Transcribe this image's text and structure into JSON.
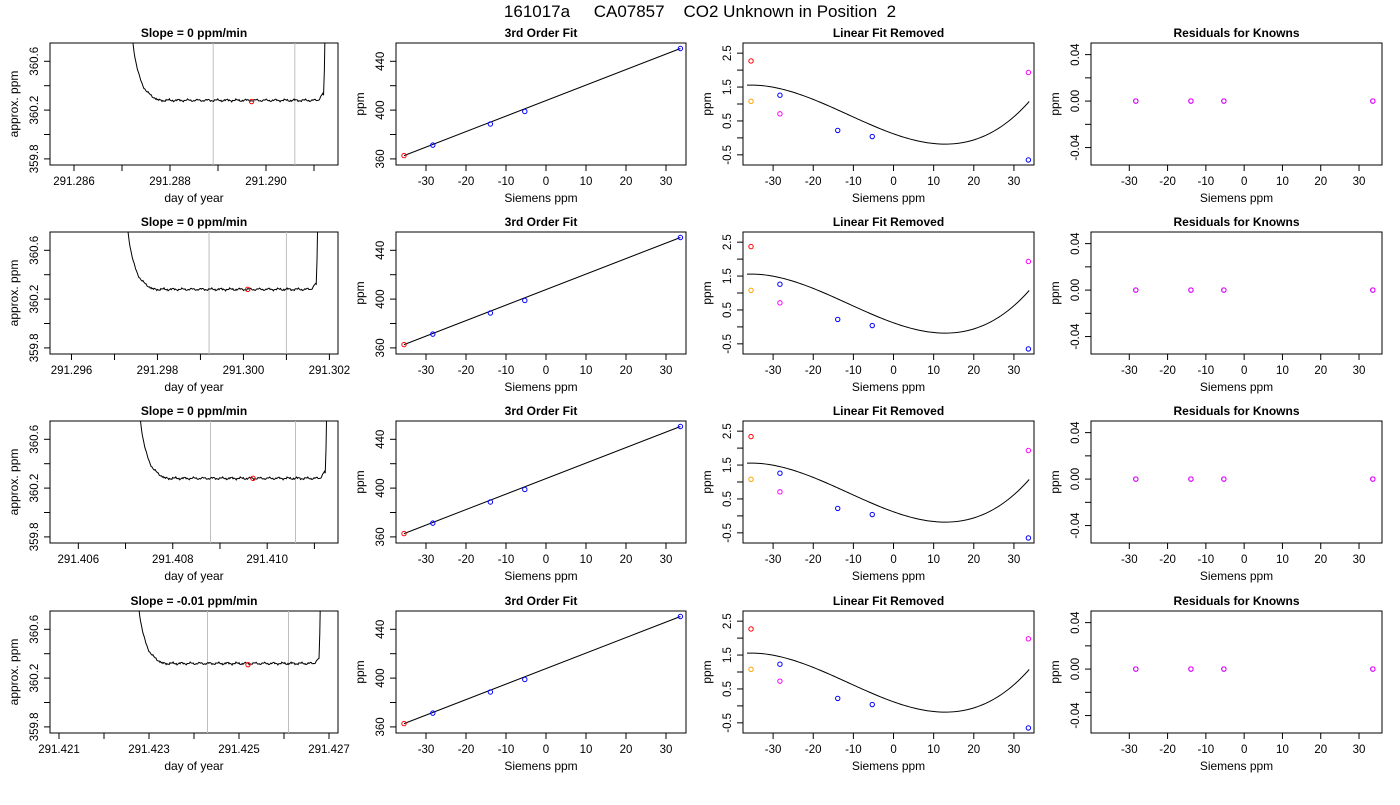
{
  "title": "161017a     CA07857    CO2 Unknown in Position  2",
  "colors": {
    "known": "#0000ff",
    "unknown": "#ff0000",
    "orange": "#ffa500",
    "magenta": "#ff00ff",
    "vline": "#bebebe"
  },
  "chart_data": [
    {
      "type": "line",
      "title": "Slope =  0  ppm/min",
      "xlabel": "day of year",
      "ylabel": "approx. ppm",
      "xlim": [
        291.2855,
        291.2915
      ],
      "ylim": [
        359.75,
        360.75
      ],
      "xticks": [
        291.286,
        291.287,
        291.288,
        291.289,
        291.29,
        291.291
      ],
      "xtick_labels": [
        "291.286",
        "",
        "291.288",
        "",
        "291.290",
        ""
      ],
      "yticks": [
        359.8,
        360.0,
        360.2,
        360.4,
        360.6
      ],
      "ytick_labels": [
        "359.8",
        "",
        "360.2",
        "",
        "360.6"
      ],
      "series_x0": 291.28715,
      "series_x1": 291.29125,
      "level": 360.28,
      "rise_end": 360.34,
      "vlines": [
        291.2889,
        291.2906
      ],
      "marker": {
        "x": 291.2897,
        "y": 360.27
      }
    },
    {
      "type": "scatter",
      "title": "3rd Order Fit",
      "xlabel": "Siemens ppm",
      "ylabel": "ppm",
      "xlim": [
        -37.5,
        35
      ],
      "ylim": [
        355,
        455
      ],
      "xticks": [
        -30,
        -20,
        -10,
        0,
        10,
        20,
        30
      ],
      "xtick_labels": [
        "-30",
        "-20",
        "-10",
        "0",
        "10",
        "20",
        "30"
      ],
      "yticks": [
        360,
        380,
        400,
        420,
        440
      ],
      "ytick_labels": [
        "360",
        "",
        "400",
        "",
        "440"
      ],
      "known": {
        "x": [
          -28.3,
          -13.9,
          -5.3,
          33.6
        ],
        "y": [
          371.3,
          388.6,
          398.9,
          450.5
        ]
      },
      "unknown": {
        "x": [
          -35.5
        ],
        "y": [
          362.7
        ]
      },
      "fit": {
        "x0": -35.5,
        "x1": 33.6
      }
    },
    {
      "type": "scatter",
      "title": "Linear Fit Removed",
      "xlabel": "Siemens ppm",
      "ylabel": "ppm",
      "xlim": [
        -37.5,
        35
      ],
      "ylim": [
        -0.8,
        2.8
      ],
      "xticks": [
        -30,
        -20,
        -10,
        0,
        10,
        20,
        30
      ],
      "xtick_labels": [
        "-30",
        "-20",
        "-10",
        "0",
        "10",
        "20",
        "30"
      ],
      "yticks": [
        -0.5,
        0,
        0.5,
        1,
        1.5,
        2,
        2.5
      ],
      "ytick_labels": [
        "-0.5",
        "",
        "0.5",
        "",
        "1.5",
        "",
        "2.5"
      ],
      "known": {
        "x": [
          -28.3,
          -13.9,
          -5.3,
          33.6
        ],
        "y": [
          1.26,
          0.22,
          0.04,
          -0.65
        ]
      },
      "unknown": {
        "x": [
          -35.5
        ],
        "y": [
          2.27
        ]
      },
      "orange": {
        "x": [
          -35.5
        ],
        "y": [
          1.08
        ]
      },
      "magenta": {
        "x": [
          -28.3,
          33.6
        ],
        "y": [
          0.71,
          1.93
        ]
      },
      "curve": {
        "x0": -36.5,
        "x1": 33.8,
        "c": [
          0.1203,
          -0.04215,
          0.001044,
          3.07e-05
        ]
      }
    },
    {
      "type": "scatter",
      "title": "Residuals for Knowns",
      "xlabel": "Siemens ppm",
      "ylabel": "ppm",
      "xlim": [
        -40,
        36
      ],
      "ylim": [
        -0.055,
        0.05
      ],
      "xticks": [
        -30,
        -20,
        -10,
        0,
        10,
        20,
        30
      ],
      "xtick_labels": [
        "-30",
        "-20",
        "-10",
        "0",
        "10",
        "20",
        "30"
      ],
      "yticks": [
        -0.04,
        -0.02,
        0,
        0.02,
        0.04
      ],
      "ytick_labels": [
        "-0.04",
        "",
        "0.00",
        "",
        "0.04"
      ],
      "known": {
        "x": [
          -28.3,
          -13.9,
          -5.3,
          33.6
        ],
        "y": [
          0,
          0,
          0,
          0
        ]
      }
    },
    {
      "type": "line",
      "title": "Slope =  0  ppm/min",
      "xlabel": "day of year",
      "ylabel": "approx. ppm",
      "xlim": [
        291.2955,
        291.3022
      ],
      "ylim": [
        359.75,
        360.75
      ],
      "xticks": [
        291.296,
        291.297,
        291.298,
        291.299,
        291.3,
        291.301,
        291.302
      ],
      "xtick_labels": [
        "291.296",
        "",
        "291.298",
        "",
        "291.300",
        "",
        "291.302"
      ],
      "yticks": [
        359.8,
        360.0,
        360.2,
        360.4,
        360.6
      ],
      "ytick_labels": [
        "359.8",
        "",
        "360.2",
        "",
        "360.6"
      ],
      "series_x0": 291.29723,
      "series_x1": 291.30175,
      "level": 360.28,
      "rise_end": 360.33,
      "vlines": [
        291.2992,
        291.301
      ],
      "marker": {
        "x": 291.3001,
        "y": 360.28
      }
    },
    {
      "type": "scatter",
      "title": "3rd Order Fit",
      "xlabel": "Siemens ppm",
      "ylabel": "ppm",
      "xlim": [
        -37.5,
        35
      ],
      "ylim": [
        355,
        455
      ],
      "xticks": [
        -30,
        -20,
        -10,
        0,
        10,
        20,
        30
      ],
      "xtick_labels": [
        "-30",
        "-20",
        "-10",
        "0",
        "10",
        "20",
        "30"
      ],
      "yticks": [
        360,
        380,
        400,
        420,
        440
      ],
      "ytick_labels": [
        "360",
        "",
        "400",
        "",
        "440"
      ],
      "known": {
        "x": [
          -28.3,
          -13.9,
          -5.3,
          33.6
        ],
        "y": [
          371.3,
          388.6,
          398.9,
          450.5
        ]
      },
      "unknown": {
        "x": [
          -35.5
        ],
        "y": [
          362.7
        ]
      },
      "fit": {
        "x0": -35.5,
        "x1": 33.6
      }
    },
    {
      "type": "scatter",
      "title": "Linear Fit Removed",
      "xlabel": "Siemens ppm",
      "ylabel": "ppm",
      "xlim": [
        -37.5,
        35
      ],
      "ylim": [
        -0.8,
        2.8
      ],
      "xticks": [
        -30,
        -20,
        -10,
        0,
        10,
        20,
        30
      ],
      "xtick_labels": [
        "-30",
        "-20",
        "-10",
        "0",
        "10",
        "20",
        "30"
      ],
      "yticks": [
        -0.5,
        0,
        0.5,
        1,
        1.5,
        2,
        2.5
      ],
      "ytick_labels": [
        "-0.5",
        "",
        "0.5",
        "",
        "1.5",
        "",
        "2.5"
      ],
      "known": {
        "x": [
          -28.3,
          -13.9,
          -5.3,
          33.6
        ],
        "y": [
          1.26,
          0.22,
          0.04,
          -0.65
        ]
      },
      "unknown": {
        "x": [
          -35.5
        ],
        "y": [
          2.37
        ]
      },
      "orange": {
        "x": [
          -35.5
        ],
        "y": [
          1.08
        ]
      },
      "magenta": {
        "x": [
          -28.3,
          33.6
        ],
        "y": [
          0.71,
          1.93
        ]
      },
      "curve": {
        "x0": -36.5,
        "x1": 33.8,
        "c": [
          0.1203,
          -0.04215,
          0.001044,
          3.07e-05
        ]
      }
    },
    {
      "type": "scatter",
      "title": "Residuals for Knowns",
      "xlabel": "Siemens ppm",
      "ylabel": "ppm",
      "xlim": [
        -40,
        36
      ],
      "ylim": [
        -0.055,
        0.05
      ],
      "xticks": [
        -30,
        -20,
        -10,
        0,
        10,
        20,
        30
      ],
      "xtick_labels": [
        "-30",
        "-20",
        "-10",
        "0",
        "10",
        "20",
        "30"
      ],
      "yticks": [
        -0.04,
        -0.02,
        0,
        0.02,
        0.04
      ],
      "ytick_labels": [
        "-0.04",
        "",
        "0.00",
        "",
        "0.04"
      ],
      "known": {
        "x": [
          -28.3,
          -13.9,
          -5.3,
          33.6
        ],
        "y": [
          0,
          0,
          0,
          0
        ]
      }
    },
    {
      "type": "line",
      "title": "Slope =  0  ppm/min",
      "xlabel": "day of year",
      "ylabel": "approx. ppm",
      "xlim": [
        291.4054,
        291.4115
      ],
      "ylim": [
        359.75,
        360.75
      ],
      "xticks": [
        291.406,
        291.407,
        291.408,
        291.409,
        291.41,
        291.411
      ],
      "xtick_labels": [
        "291.406",
        "",
        "291.408",
        "",
        "291.410",
        ""
      ],
      "yticks": [
        359.8,
        360.0,
        360.2,
        360.4,
        360.6
      ],
      "ytick_labels": [
        "359.8",
        "",
        "360.2",
        "",
        "360.6"
      ],
      "series_x0": 291.40724,
      "series_x1": 291.41128,
      "level": 360.28,
      "rise_end": 360.34,
      "vlines": [
        291.4088,
        291.4106
      ],
      "marker": {
        "x": 291.4097,
        "y": 360.28
      }
    },
    {
      "type": "scatter",
      "title": "3rd Order Fit",
      "xlabel": "Siemens ppm",
      "ylabel": "ppm",
      "xlim": [
        -37.5,
        35
      ],
      "ylim": [
        355,
        455
      ],
      "xticks": [
        -30,
        -20,
        -10,
        0,
        10,
        20,
        30
      ],
      "xtick_labels": [
        "-30",
        "-20",
        "-10",
        "0",
        "10",
        "20",
        "30"
      ],
      "yticks": [
        360,
        380,
        400,
        420,
        440
      ],
      "ytick_labels": [
        "360",
        "",
        "400",
        "",
        "440"
      ],
      "known": {
        "x": [
          -28.3,
          -13.9,
          -5.3,
          33.6
        ],
        "y": [
          371.3,
          388.6,
          398.9,
          450.5
        ]
      },
      "unknown": {
        "x": [
          -35.5
        ],
        "y": [
          362.7
        ]
      },
      "fit": {
        "x0": -35.5,
        "x1": 33.6
      }
    },
    {
      "type": "scatter",
      "title": "Linear Fit Removed",
      "xlabel": "Siemens ppm",
      "ylabel": "ppm",
      "xlim": [
        -37.5,
        35
      ],
      "ylim": [
        -0.8,
        2.8
      ],
      "xticks": [
        -30,
        -20,
        -10,
        0,
        10,
        20,
        30
      ],
      "xtick_labels": [
        "-30",
        "-20",
        "-10",
        "0",
        "10",
        "20",
        "30"
      ],
      "yticks": [
        -0.5,
        0,
        0.5,
        1,
        1.5,
        2,
        2.5
      ],
      "ytick_labels": [
        "-0.5",
        "",
        "0.5",
        "",
        "1.5",
        "",
        "2.5"
      ],
      "known": {
        "x": [
          -28.3,
          -13.9,
          -5.3,
          33.6
        ],
        "y": [
          1.26,
          0.22,
          0.04,
          -0.65
        ]
      },
      "unknown": {
        "x": [
          -35.5
        ],
        "y": [
          2.34
        ]
      },
      "orange": {
        "x": [
          -35.5
        ],
        "y": [
          1.08
        ]
      },
      "magenta": {
        "x": [
          -28.3,
          33.6
        ],
        "y": [
          0.71,
          1.93
        ]
      },
      "curve": {
        "x0": -36.5,
        "x1": 33.8,
        "c": [
          0.1203,
          -0.04215,
          0.001044,
          3.07e-05
        ]
      }
    },
    {
      "type": "scatter",
      "title": "Residuals for Knowns",
      "xlabel": "Siemens ppm",
      "ylabel": "ppm",
      "xlim": [
        -40,
        36
      ],
      "ylim": [
        -0.055,
        0.05
      ],
      "xticks": [
        -30,
        -20,
        -10,
        0,
        10,
        20,
        30
      ],
      "xtick_labels": [
        "-30",
        "-20",
        "-10",
        "0",
        "10",
        "20",
        "30"
      ],
      "yticks": [
        -0.04,
        -0.02,
        0,
        0.02,
        0.04
      ],
      "ytick_labels": [
        "-0.04",
        "",
        "0.00",
        "",
        "0.04"
      ],
      "known": {
        "x": [
          -28.3,
          -13.9,
          -5.3,
          33.6
        ],
        "y": [
          0,
          0,
          0,
          0
        ]
      }
    },
    {
      "type": "line",
      "title": "Slope =  -0.01  ppm/min",
      "xlabel": "day of year",
      "ylabel": "approx. ppm",
      "xlim": [
        291.4208,
        291.4272
      ],
      "ylim": [
        359.75,
        360.75
      ],
      "xticks": [
        291.421,
        291.422,
        291.423,
        291.424,
        291.425,
        291.426,
        291.427
      ],
      "xtick_labels": [
        "291.421",
        "",
        "291.423",
        "",
        "291.425",
        "",
        "291.427"
      ],
      "yticks": [
        359.8,
        360.0,
        360.2,
        360.4,
        360.6
      ],
      "ytick_labels": [
        "359.8",
        "",
        "360.2",
        "",
        "360.6"
      ],
      "series_x0": 291.42269,
      "series_x1": 291.42683,
      "level": 360.32,
      "rise_end": 360.36,
      "vlines": [
        291.4243,
        291.4261
      ],
      "marker": {
        "x": 291.4252,
        "y": 360.31
      }
    },
    {
      "type": "scatter",
      "title": "3rd Order Fit",
      "xlabel": "Siemens ppm",
      "ylabel": "ppm",
      "xlim": [
        -37.5,
        35
      ],
      "ylim": [
        355,
        455
      ],
      "xticks": [
        -30,
        -20,
        -10,
        0,
        10,
        20,
        30
      ],
      "xtick_labels": [
        "-30",
        "-20",
        "-10",
        "0",
        "10",
        "20",
        "30"
      ],
      "yticks": [
        360,
        380,
        400,
        420,
        440
      ],
      "ytick_labels": [
        "360",
        "",
        "400",
        "",
        "440"
      ],
      "known": {
        "x": [
          -28.3,
          -13.9,
          -5.3,
          33.6
        ],
        "y": [
          371.3,
          388.6,
          398.9,
          450.5
        ]
      },
      "unknown": {
        "x": [
          -35.5
        ],
        "y": [
          362.7
        ]
      },
      "fit": {
        "x0": -35.5,
        "x1": 33.6
      }
    },
    {
      "type": "scatter",
      "title": "Linear Fit Removed",
      "xlabel": "Siemens ppm",
      "ylabel": "ppm",
      "xlim": [
        -37.5,
        35
      ],
      "ylim": [
        -0.8,
        2.8
      ],
      "xticks": [
        -30,
        -20,
        -10,
        0,
        10,
        20,
        30
      ],
      "xtick_labels": [
        "-30",
        "-20",
        "-10",
        "0",
        "10",
        "20",
        "30"
      ],
      "yticks": [
        -0.5,
        0,
        0.5,
        1,
        1.5,
        2,
        2.5
      ],
      "ytick_labels": [
        "-0.5",
        "",
        "0.5",
        "",
        "1.5",
        "",
        "2.5"
      ],
      "known": {
        "x": [
          -28.3,
          -13.9,
          -5.3,
          33.6
        ],
        "y": [
          1.23,
          0.22,
          0.04,
          -0.65
        ]
      },
      "unknown": {
        "x": [
          -35.5
        ],
        "y": [
          2.27
        ]
      },
      "orange": {
        "x": [
          -35.5
        ],
        "y": [
          1.08
        ]
      },
      "magenta": {
        "x": [
          -28.3,
          33.6
        ],
        "y": [
          0.73,
          1.98
        ]
      },
      "curve": {
        "x0": -36.5,
        "x1": 33.8,
        "c": [
          0.1203,
          -0.04215,
          0.001044,
          3.07e-05
        ]
      }
    },
    {
      "type": "scatter",
      "title": "Residuals for Knowns",
      "xlabel": "Siemens ppm",
      "ylabel": "ppm",
      "xlim": [
        -40,
        36
      ],
      "ylim": [
        -0.055,
        0.05
      ],
      "xticks": [
        -30,
        -20,
        -10,
        0,
        10,
        20,
        30
      ],
      "xtick_labels": [
        "-30",
        "-20",
        "-10",
        "0",
        "10",
        "20",
        "30"
      ],
      "yticks": [
        -0.04,
        -0.02,
        0,
        0.02,
        0.04
      ],
      "ytick_labels": [
        "-0.04",
        "",
        "0.00",
        "",
        "0.04"
      ],
      "known": {
        "x": [
          -28.3,
          -13.9,
          -5.3,
          33.6
        ],
        "y": [
          0,
          0,
          0,
          0
        ]
      }
    }
  ]
}
